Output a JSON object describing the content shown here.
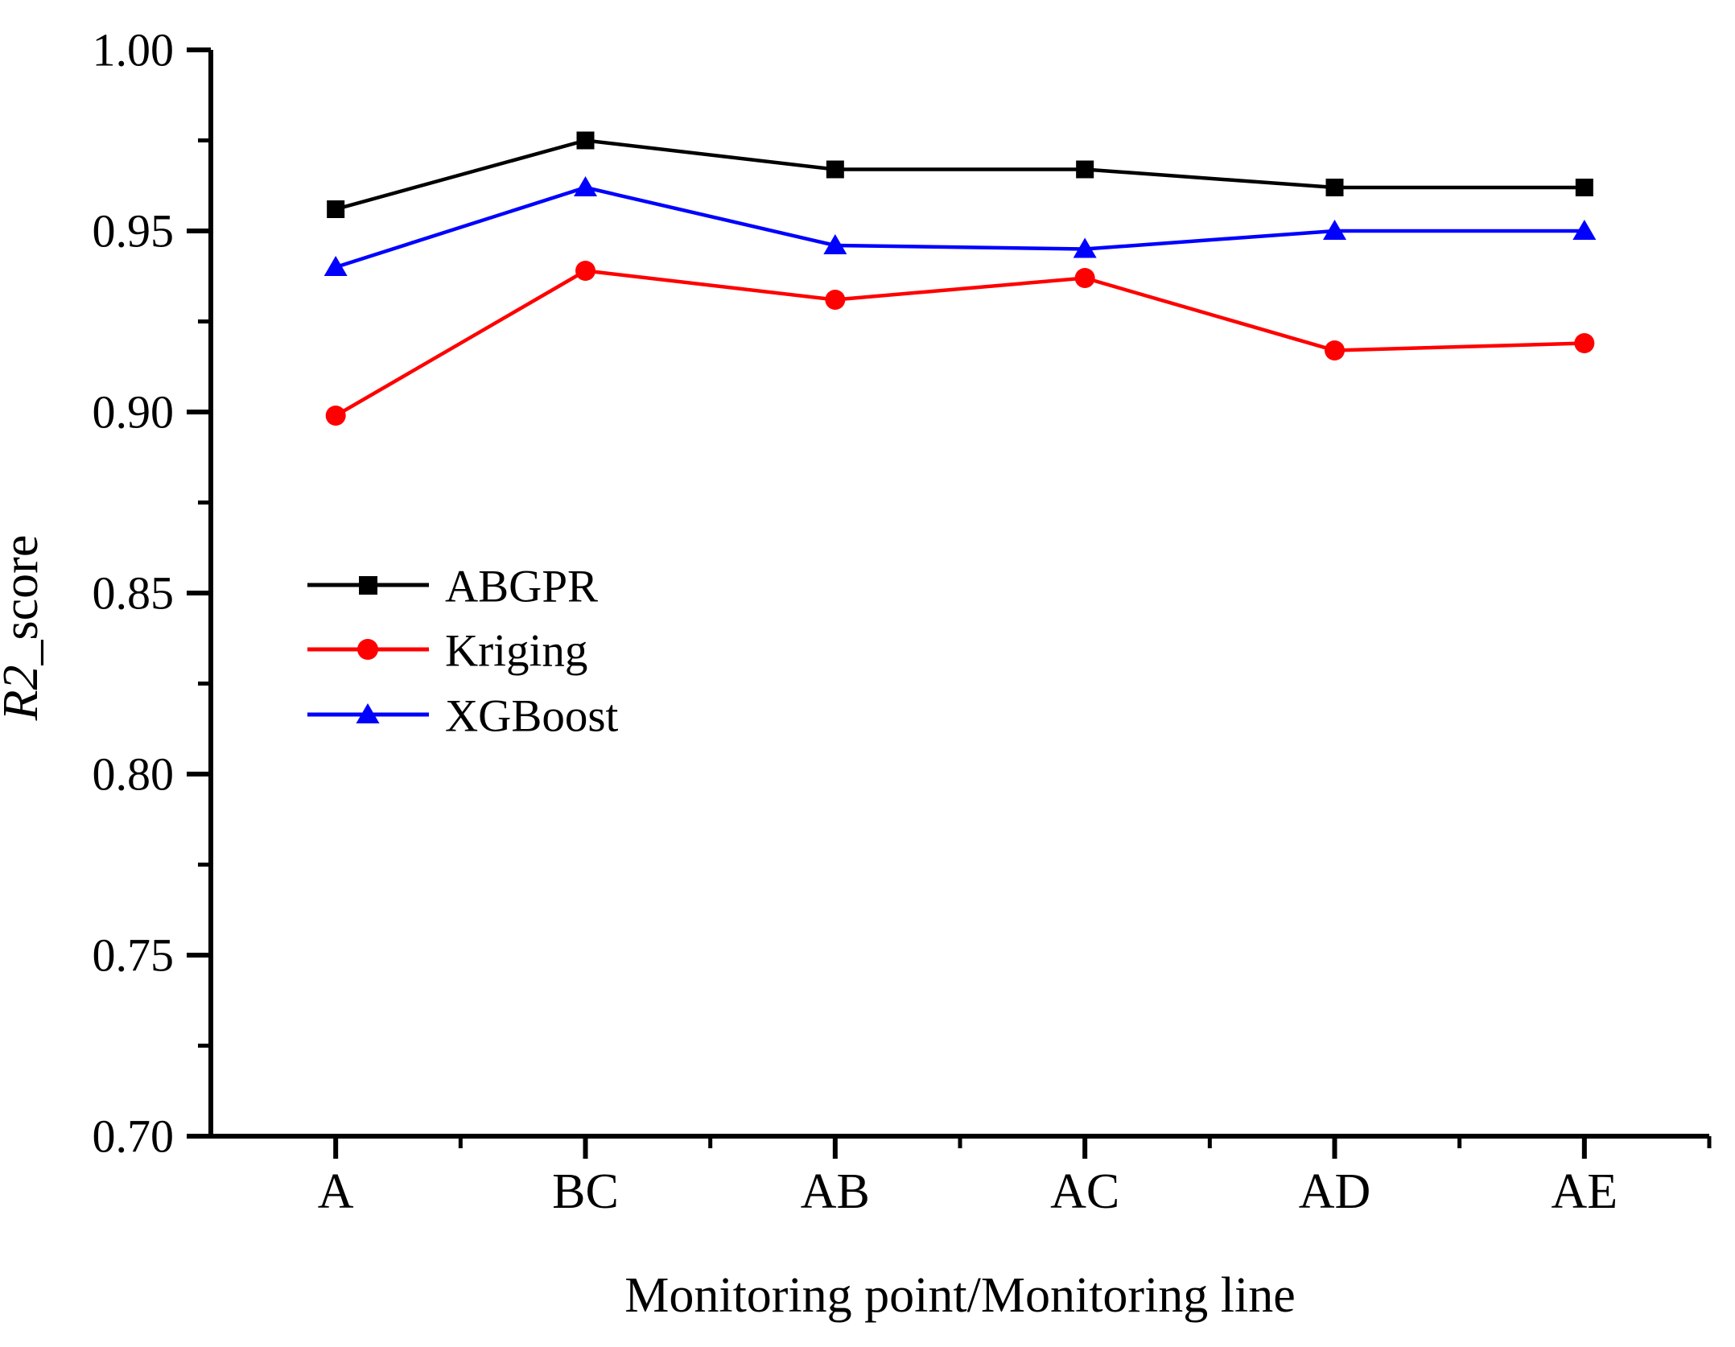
{
  "figure": {
    "background": "#ffffff",
    "axis_color": "#000000"
  },
  "chart_data": {
    "type": "line",
    "title": "",
    "categories": [
      "A",
      "BC",
      "AB",
      "AC",
      "AD",
      "AE"
    ],
    "series": [
      {
        "name": "ABGPR",
        "color": "#000000",
        "marker": "square",
        "values": [
          0.956,
          0.975,
          0.967,
          0.967,
          0.962,
          0.962
        ]
      },
      {
        "name": "Kriging",
        "color": "#ff0000",
        "marker": "circle",
        "values": [
          0.899,
          0.939,
          0.931,
          0.937,
          0.917,
          0.919
        ]
      },
      {
        "name": "XGBoost",
        "color": "#0000ff",
        "marker": "triangle",
        "values": [
          0.94,
          0.962,
          0.946,
          0.945,
          0.95,
          0.95
        ]
      }
    ],
    "xlabel": "Monitoring point/Monitoring line",
    "ylabel": "R2_score",
    "ylabel_italic": "R2",
    "ylabel_rest": "_score",
    "ylim": [
      0.7,
      1.0
    ],
    "y_major_step": 0.05,
    "y_minor_step": 0.025,
    "y_tick_labels": [
      "0.70",
      "0.75",
      "0.80",
      "0.85",
      "0.90",
      "0.95",
      "1.00"
    ],
    "x_tick_labels": [
      "A",
      "BC",
      "AB",
      "AC",
      "AD",
      "AE"
    ],
    "grid": false,
    "legend_position": "inside-left"
  }
}
